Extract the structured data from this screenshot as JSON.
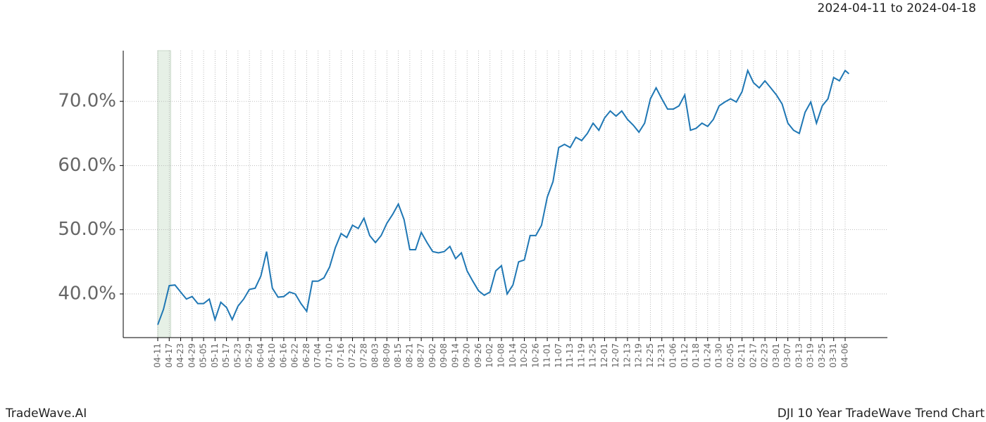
{
  "header": {
    "date_range": "2024-04-11 to 2024-04-18"
  },
  "footer": {
    "brand": "TradeWave.AI",
    "chart_name": "DJI 10 Year TradeWave Trend Chart"
  },
  "chart_data": {
    "type": "line",
    "color": "#1f77b4",
    "grid": true,
    "shaded_range": [
      "04-11",
      "04-17"
    ],
    "shade_color": "#e6f0e6",
    "x": [
      "04-11",
      "04-14",
      "04-17",
      "04-20",
      "04-23",
      "04-26",
      "04-29",
      "05-02",
      "05-05",
      "05-08",
      "05-11",
      "05-14",
      "05-17",
      "05-20",
      "05-23",
      "05-26",
      "05-29",
      "06-01",
      "06-04",
      "06-07",
      "06-10",
      "06-13",
      "06-16",
      "06-19",
      "06-22",
      "06-25",
      "06-28",
      "07-01",
      "07-04",
      "07-07",
      "07-10",
      "07-13",
      "07-16",
      "07-19",
      "07-22",
      "07-25",
      "07-28",
      "07-31",
      "08-03",
      "08-06",
      "08-09",
      "08-12",
      "08-15",
      "08-18",
      "08-21",
      "08-24",
      "08-27",
      "08-30",
      "09-02",
      "09-05",
      "09-08",
      "09-11",
      "09-14",
      "09-17",
      "09-20",
      "09-23",
      "09-26",
      "09-29",
      "10-02",
      "10-05",
      "10-08",
      "10-11",
      "10-14",
      "10-17",
      "10-20",
      "10-23",
      "10-26",
      "10-29",
      "11-01",
      "11-04",
      "11-07",
      "11-10",
      "11-13",
      "11-16",
      "11-19",
      "11-22",
      "11-25",
      "11-28",
      "12-01",
      "12-04",
      "12-07",
      "12-10",
      "12-13",
      "12-16",
      "12-19",
      "12-22",
      "12-25",
      "12-28",
      "12-31",
      "01-03",
      "01-06",
      "01-09",
      "01-12",
      "01-15",
      "01-18",
      "01-21",
      "01-24",
      "01-27",
      "01-30",
      "02-02",
      "02-05",
      "02-08",
      "02-11",
      "02-14",
      "02-17",
      "02-20",
      "02-23",
      "02-26",
      "03-01",
      "03-04",
      "03-07",
      "03-10",
      "03-13",
      "03-16",
      "03-19",
      "03-22",
      "03-25",
      "03-28",
      "03-31",
      "04-03",
      "04-06",
      "04-08"
    ],
    "values": [
      35.2,
      37.6,
      41.3,
      41.4,
      40.3,
      39.2,
      39.6,
      38.5,
      38.5,
      39.2,
      36.0,
      38.7,
      37.9,
      36.0,
      38.1,
      39.2,
      40.7,
      40.9,
      42.8,
      46.6,
      40.9,
      39.5,
      39.6,
      40.3,
      40.0,
      38.5,
      37.3,
      42.0,
      42.0,
      42.5,
      44.2,
      47.2,
      49.4,
      48.8,
      50.7,
      50.2,
      51.8,
      49.1,
      48.0,
      49.1,
      51.0,
      52.4,
      54.0,
      51.6,
      46.9,
      46.9,
      49.6,
      48.0,
      46.6,
      46.4,
      46.6,
      47.4,
      45.5,
      46.4,
      43.6,
      42.0,
      40.5,
      39.8,
      40.3,
      43.6,
      44.4,
      40.0,
      41.4,
      45.0,
      45.3,
      49.1,
      49.1,
      50.7,
      55.1,
      57.5,
      62.8,
      63.3,
      62.8,
      64.4,
      63.9,
      65.0,
      66.6,
      65.5,
      67.4,
      68.5,
      67.7,
      68.5,
      67.2,
      66.3,
      65.2,
      66.6,
      70.4,
      72.1,
      70.4,
      68.8,
      68.8,
      69.3,
      71.0,
      65.5,
      65.8,
      66.6,
      66.1,
      67.2,
      69.3,
      69.9,
      70.4,
      69.9,
      71.5,
      74.8,
      72.9,
      72.1,
      73.2,
      72.1,
      71.0,
      69.6,
      66.6,
      65.5,
      65.0,
      68.3,
      69.9,
      66.6,
      69.3,
      70.4,
      73.7,
      73.2,
      74.8,
      74.3
    ],
    "xticks": [
      "04-11",
      "04-17",
      "04-23",
      "04-29",
      "05-05",
      "05-11",
      "05-17",
      "05-23",
      "05-29",
      "06-04",
      "06-10",
      "06-16",
      "06-22",
      "06-28",
      "07-04",
      "07-10",
      "07-16",
      "07-22",
      "07-28",
      "08-03",
      "08-09",
      "08-15",
      "08-21",
      "08-27",
      "09-02",
      "09-08",
      "09-14",
      "09-20",
      "09-26",
      "10-02",
      "10-08",
      "10-14",
      "10-20",
      "10-26",
      "11-01",
      "11-07",
      "11-13",
      "11-19",
      "11-25",
      "12-01",
      "12-07",
      "12-13",
      "12-19",
      "12-25",
      "12-31",
      "01-06",
      "01-12",
      "01-18",
      "01-24",
      "01-30",
      "02-05",
      "02-11",
      "02-17",
      "02-23",
      "03-01",
      "03-07",
      "03-13",
      "03-19",
      "03-25",
      "03-31",
      "04-06"
    ],
    "ylim": [
      33.2,
      77.9
    ],
    "yticks": [
      {
        "value": 40,
        "label": "40.0%"
      },
      {
        "value": 50,
        "label": "50.0%"
      },
      {
        "value": 60,
        "label": "60.0%"
      },
      {
        "value": 70,
        "label": "70.0%"
      }
    ]
  }
}
